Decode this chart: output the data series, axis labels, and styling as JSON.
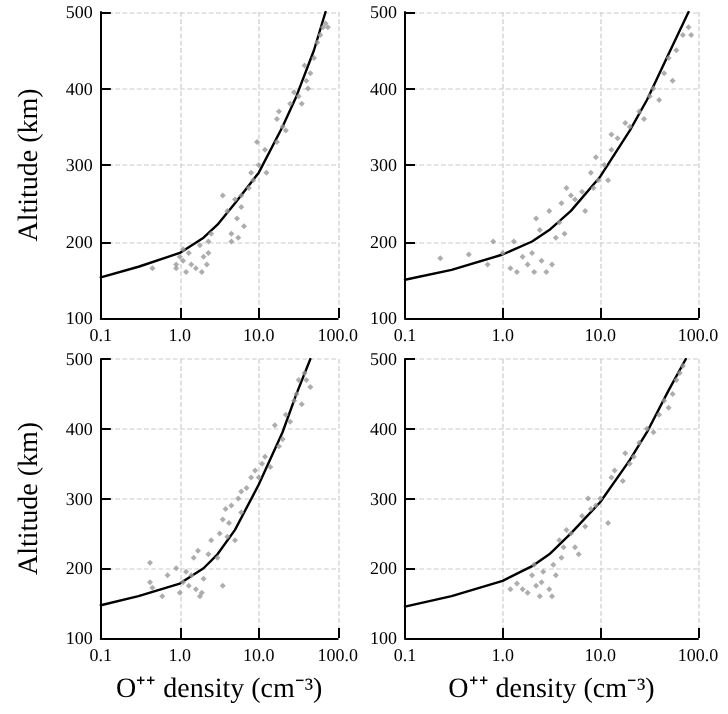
{
  "chart_data": [
    {
      "type": "scatter",
      "ylabel": "Altitude (km)",
      "xlim": [
        0.1,
        100
      ],
      "ylim": [
        100,
        500
      ],
      "log": "x",
      "grid": true,
      "xticks": [
        {
          "value": 0.1,
          "label": "0.1"
        },
        {
          "value": 1,
          "label": "1.0"
        },
        {
          "value": 10,
          "label": "10.0"
        },
        {
          "value": 100,
          "label": "100.0"
        }
      ],
      "yticks": [
        100,
        200,
        300,
        400,
        500
      ],
      "series": [
        {
          "type": "scatter",
          "color": "#999999",
          "marker": "diamond",
          "x": [
            0.45,
            0.9,
            0.9,
            1.0,
            1.1,
            1.1,
            1.2,
            1.3,
            1.4,
            1.6,
            1.8,
            1.9,
            2.0,
            2.2,
            2.3,
            2.5,
            2.3,
            3.5,
            4.0,
            4.5,
            4.5,
            5,
            5.3,
            5.5,
            6,
            6,
            6.5,
            7.5,
            8,
            8.5,
            9.5,
            10,
            12,
            12.5,
            17,
            17,
            18,
            20,
            22,
            25,
            28,
            32,
            35,
            38,
            40,
            42,
            45,
            50,
            55,
            60,
            65,
            70,
            75
          ],
          "values": [
            165,
            165,
            170,
            180,
            190,
            175,
            160,
            185,
            170,
            165,
            195,
            160,
            180,
            170,
            200,
            210,
            185,
            260,
            240,
            210,
            200,
            255,
            230,
            205,
            260,
            245,
            220,
            270,
            290,
            280,
            330,
            300,
            320,
            290,
            330,
            360,
            370,
            350,
            345,
            380,
            395,
            390,
            380,
            430,
            410,
            400,
            420,
            440,
            460,
            470,
            480,
            485,
            480
          ]
        },
        {
          "type": "line",
          "color": "#000000",
          "marker": "none",
          "line_style": "solid",
          "x": [
            0.1,
            0.3,
            1,
            2,
            3,
            5,
            10,
            20,
            30,
            50,
            70
          ],
          "values": [
            153,
            167,
            185,
            205,
            222,
            250,
            290,
            350,
            390,
            450,
            500
          ]
        }
      ]
    },
    {
      "type": "scatter",
      "xlim": [
        0.1,
        100
      ],
      "ylim": [
        100,
        500
      ],
      "log": "x",
      "grid": true,
      "xticks": [
        {
          "value": 0.1,
          "label": "0.1"
        },
        {
          "value": 1,
          "label": "1.0"
        },
        {
          "value": 10,
          "label": "10.0"
        },
        {
          "value": 100,
          "label": "100.0"
        }
      ],
      "yticks": [
        100,
        200,
        300,
        400,
        500
      ],
      "series": [
        {
          "type": "scatter",
          "color": "#999999",
          "marker": "diamond",
          "x": [
            0.23,
            0.45,
            0.7,
            0.8,
            1.0,
            1.2,
            1.3,
            1.4,
            1.6,
            1.8,
            2.0,
            2.1,
            2.2,
            2.4,
            2.5,
            2.8,
            3.0,
            3.2,
            3.5,
            3.8,
            4,
            4.3,
            4.5,
            5,
            5.5,
            6.5,
            7,
            8,
            8.5,
            9,
            9.5,
            11,
            12,
            13,
            13,
            15,
            18,
            20,
            25,
            28,
            32,
            35,
            40,
            45,
            50,
            55,
            60,
            70,
            80,
            85
          ],
          "values": [
            178,
            183,
            170,
            200,
            185,
            165,
            200,
            160,
            180,
            170,
            185,
            160,
            230,
            215,
            175,
            160,
            240,
            170,
            205,
            225,
            250,
            210,
            270,
            260,
            255,
            265,
            240,
            290,
            270,
            310,
            280,
            300,
            280,
            340,
            320,
            335,
            355,
            350,
            370,
            360,
            390,
            400,
            385,
            420,
            440,
            410,
            450,
            470,
            480,
            470
          ]
        },
        {
          "type": "line",
          "color": "#000000",
          "marker": "none",
          "line_style": "solid",
          "x": [
            0.1,
            0.3,
            1,
            2,
            3,
            5,
            10,
            20,
            30,
            50,
            80
          ],
          "values": [
            150,
            163,
            183,
            200,
            215,
            240,
            285,
            345,
            385,
            445,
            500
          ]
        }
      ]
    },
    {
      "type": "scatter",
      "xlabel": "O⁺⁺ density (cm⁻³)",
      "ylabel": "Altitude (km)",
      "xlim": [
        0.1,
        100
      ],
      "ylim": [
        100,
        500
      ],
      "log": "x",
      "grid": true,
      "xticks": [
        {
          "value": 0.1,
          "label": "0.1"
        },
        {
          "value": 1,
          "label": "1.0"
        },
        {
          "value": 10,
          "label": "10.0"
        },
        {
          "value": 100,
          "label": "100.0"
        }
      ],
      "yticks": [
        100,
        200,
        300,
        400,
        500
      ],
      "series": [
        {
          "type": "scatter",
          "color": "#999999",
          "marker": "diamond",
          "x": [
            0.42,
            0.42,
            0.45,
            0.6,
            0.7,
            0.9,
            1.0,
            1.1,
            1.2,
            1.3,
            1.4,
            1.5,
            1.6,
            1.7,
            1.8,
            1.9,
            2.0,
            2.3,
            2.5,
            3.0,
            3.2,
            3.5,
            3.5,
            3.8,
            4,
            4.2,
            4.5,
            5,
            5.5,
            6,
            6,
            7,
            8,
            9,
            10,
            11,
            12,
            14,
            16,
            18,
            20,
            22,
            25,
            28,
            30,
            32,
            35,
            38,
            40,
            45
          ],
          "values": [
            208,
            180,
            172,
            160,
            190,
            200,
            165,
            180,
            195,
            175,
            190,
            215,
            170,
            225,
            160,
            165,
            185,
            220,
            240,
            215,
            250,
            270,
            175,
            285,
            245,
            265,
            290,
            240,
            300,
            280,
            310,
            315,
            330,
            340,
            330,
            350,
            360,
            345,
            405,
            375,
            385,
            420,
            410,
            440,
            450,
            470,
            435,
            480,
            470,
            460
          ]
        },
        {
          "type": "line",
          "color": "#000000",
          "marker": "none",
          "line_style": "solid",
          "x": [
            0.1,
            0.3,
            1,
            2,
            3,
            5,
            10,
            20,
            30,
            45
          ],
          "values": [
            147,
            160,
            178,
            200,
            220,
            255,
            320,
            395,
            450,
            500
          ]
        }
      ]
    },
    {
      "type": "scatter",
      "xlabel": "O⁺⁺ density (cm⁻³)",
      "xlim": [
        0.1,
        100
      ],
      "ylim": [
        100,
        500
      ],
      "log": "x",
      "grid": true,
      "xticks": [
        {
          "value": 0.1,
          "label": "0.1"
        },
        {
          "value": 1,
          "label": "1.0"
        },
        {
          "value": 10,
          "label": "10.0"
        },
        {
          "value": 100,
          "label": "100.0"
        }
      ],
      "yticks": [
        100,
        200,
        300,
        400,
        500
      ],
      "series": [
        {
          "type": "scatter",
          "color": "#999999",
          "marker": "diamond",
          "x": [
            1.2,
            1.4,
            1.6,
            1.8,
            2.0,
            2.1,
            2.2,
            2.4,
            2.5,
            2.6,
            3.0,
            3.2,
            3.3,
            3.5,
            3.8,
            4,
            4.2,
            4.5,
            5,
            5.5,
            6,
            6.5,
            7,
            7.5,
            8,
            9,
            10,
            12,
            13,
            14,
            17,
            18,
            20,
            22,
            25,
            30,
            35,
            40,
            45,
            50,
            55,
            60,
            65,
            70
          ],
          "values": [
            170,
            178,
            170,
            165,
            190,
            205,
            175,
            160,
            180,
            195,
            170,
            160,
            205,
            190,
            240,
            215,
            230,
            255,
            250,
            230,
            220,
            275,
            260,
            300,
            285,
            290,
            300,
            265,
            330,
            340,
            325,
            365,
            350,
            360,
            380,
            400,
            395,
            420,
            440,
            430,
            450,
            470,
            480,
            490
          ]
        },
        {
          "type": "line",
          "color": "#000000",
          "marker": "none",
          "line_style": "solid",
          "x": [
            0.1,
            0.3,
            1,
            2,
            3,
            5,
            10,
            20,
            30,
            50,
            75
          ],
          "values": [
            145,
            160,
            182,
            203,
            220,
            250,
            295,
            355,
            395,
            455,
            500
          ]
        }
      ]
    }
  ]
}
